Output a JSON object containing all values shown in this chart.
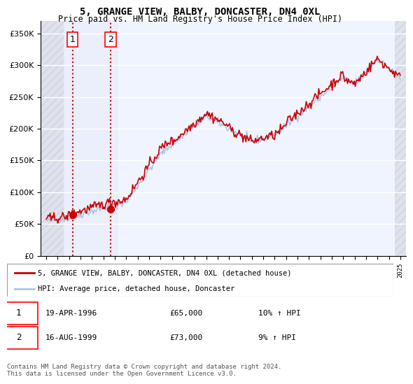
{
  "title": "5, GRANGE VIEW, BALBY, DONCASTER, DN4 0XL",
  "subtitle": "Price paid vs. HM Land Registry's House Price Index (HPI)",
  "legend_line1": "5, GRANGE VIEW, BALBY, DONCASTER, DN4 0XL (detached house)",
  "legend_line2": "HPI: Average price, detached house, Doncaster",
  "transaction1_date": "19-APR-1996",
  "transaction1_price": "£65,000",
  "transaction1_hpi": "10% ↑ HPI",
  "transaction1_year": 1996.3,
  "transaction1_value": 65000,
  "transaction2_date": "16-AUG-1999",
  "transaction2_price": "£73,000",
  "transaction2_hpi": "9% ↑ HPI",
  "transaction2_year": 1999.62,
  "transaction2_value": 73000,
  "footer": "Contains HM Land Registry data © Crown copyright and database right 2024.\nThis data is licensed under the Open Government Licence v3.0.",
  "ylim": [
    0,
    370000
  ],
  "xlim_start": 1993.5,
  "xlim_end": 2025.5,
  "hpi_color": "#aec6e8",
  "price_color": "#cc0000",
  "background_color": "#ddeeff",
  "hatch_color": "#bbbbcc"
}
